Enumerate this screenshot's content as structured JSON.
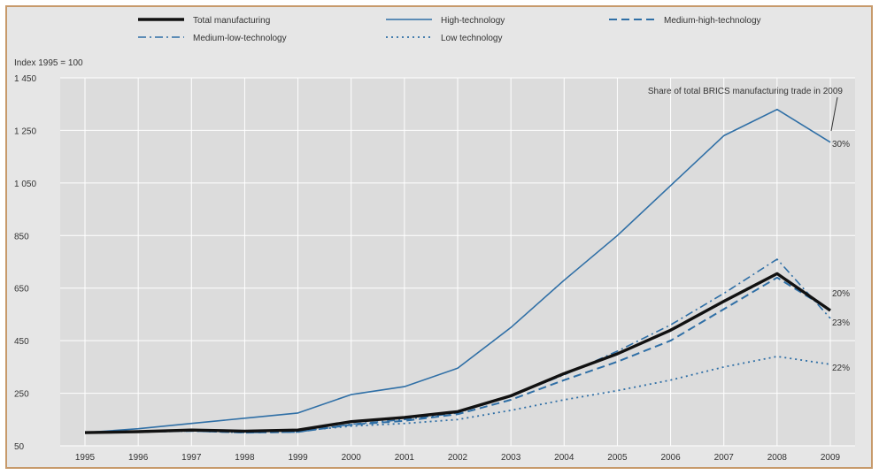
{
  "chart_data": {
    "type": "line",
    "ylabel": "Index 1995 = 100",
    "annotation": "Share of total BRICS manufacturing trade in 2009",
    "x": [
      "1995",
      "1996",
      "1997",
      "1998",
      "1999",
      "2000",
      "2001",
      "2002",
      "2003",
      "2004",
      "2005",
      "2006",
      "2007",
      "2008",
      "2009"
    ],
    "ylim": [
      50,
      1450
    ],
    "yticks": [
      50,
      250,
      450,
      650,
      850,
      1050,
      1250,
      1450
    ],
    "ytick_labels": [
      "50",
      "250",
      "450",
      "650",
      "850",
      "1 050",
      "1 250",
      "1 450"
    ],
    "grid": true,
    "legend_position": "top",
    "series": [
      {
        "name": "Total manufacturing",
        "style": "solid-thick",
        "color": "#111111",
        "values": [
          100,
          104,
          110,
          106,
          110,
          142,
          158,
          180,
          240,
          325,
          400,
          490,
          600,
          705,
          565
        ],
        "end_label": ""
      },
      {
        "name": "High-technology",
        "style": "solid",
        "color": "#2f6fa6",
        "values": [
          100,
          115,
          135,
          155,
          175,
          245,
          275,
          345,
          500,
          680,
          850,
          1040,
          1230,
          1330,
          1205
        ],
        "end_label": "30%"
      },
      {
        "name": "Medium-high-technology",
        "style": "dashed",
        "color": "#2f6fa6",
        "values": [
          100,
          103,
          107,
          100,
          103,
          130,
          145,
          170,
          225,
          300,
          370,
          450,
          570,
          690,
          565
        ],
        "end_label": "20%"
      },
      {
        "name": "Medium-low-technology",
        "style": "dashdot",
        "color": "#2f6fa6",
        "values": [
          100,
          102,
          106,
          100,
          102,
          132,
          150,
          175,
          240,
          320,
          410,
          510,
          630,
          760,
          535
        ],
        "end_label": "23%"
      },
      {
        "name": "Low technology",
        "style": "dotted",
        "color": "#2f6fa6",
        "values": [
          100,
          102,
          108,
          104,
          106,
          125,
          135,
          150,
          185,
          225,
          260,
          300,
          350,
          390,
          360
        ],
        "end_label": "22%"
      }
    ]
  }
}
